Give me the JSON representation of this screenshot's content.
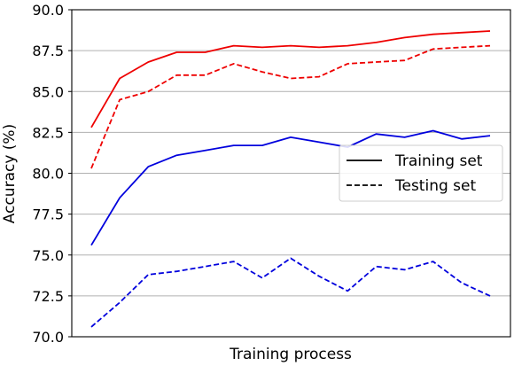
{
  "chart_data": {
    "type": "line",
    "xlabel": "Training process",
    "ylabel": "Accuracy (%)",
    "ylim": [
      70.0,
      90.0
    ],
    "yticks": [
      "70.0",
      "72.5",
      "75.0",
      "77.5",
      "80.0",
      "82.5",
      "85.0",
      "87.5",
      "90.0"
    ],
    "x": [
      1,
      2,
      3,
      4,
      5,
      6,
      7,
      8,
      9,
      10,
      11,
      12,
      13,
      14,
      15
    ],
    "grid": "horizontal",
    "legend_position": "center-right",
    "legend": [
      {
        "label": "Training set",
        "style": "solid"
      },
      {
        "label": "Testing set",
        "style": "dashed"
      }
    ],
    "series": [
      {
        "color": "#ee0000",
        "style": "solid",
        "values": [
          82.8,
          85.8,
          86.8,
          87.4,
          87.4,
          87.8,
          87.7,
          87.8,
          87.7,
          87.8,
          88.0,
          88.3,
          88.5,
          88.6,
          88.7
        ]
      },
      {
        "color": "#ee0000",
        "style": "dashed",
        "values": [
          80.3,
          84.5,
          85.0,
          86.0,
          86.0,
          86.7,
          86.2,
          85.8,
          85.9,
          86.7,
          86.8,
          86.9,
          87.6,
          87.7,
          87.8
        ]
      },
      {
        "color": "#0000dd",
        "style": "solid",
        "values": [
          75.6,
          78.5,
          80.4,
          81.1,
          81.4,
          81.7,
          81.7,
          82.2,
          81.9,
          81.6,
          82.4,
          82.2,
          82.6,
          82.1,
          82.3
        ]
      },
      {
        "color": "#0000dd",
        "style": "dashed",
        "values": [
          70.6,
          72.1,
          73.8,
          74.0,
          74.3,
          74.6,
          73.6,
          74.8,
          73.7,
          72.8,
          74.3,
          74.1,
          74.6,
          73.3,
          72.5
        ]
      }
    ]
  }
}
